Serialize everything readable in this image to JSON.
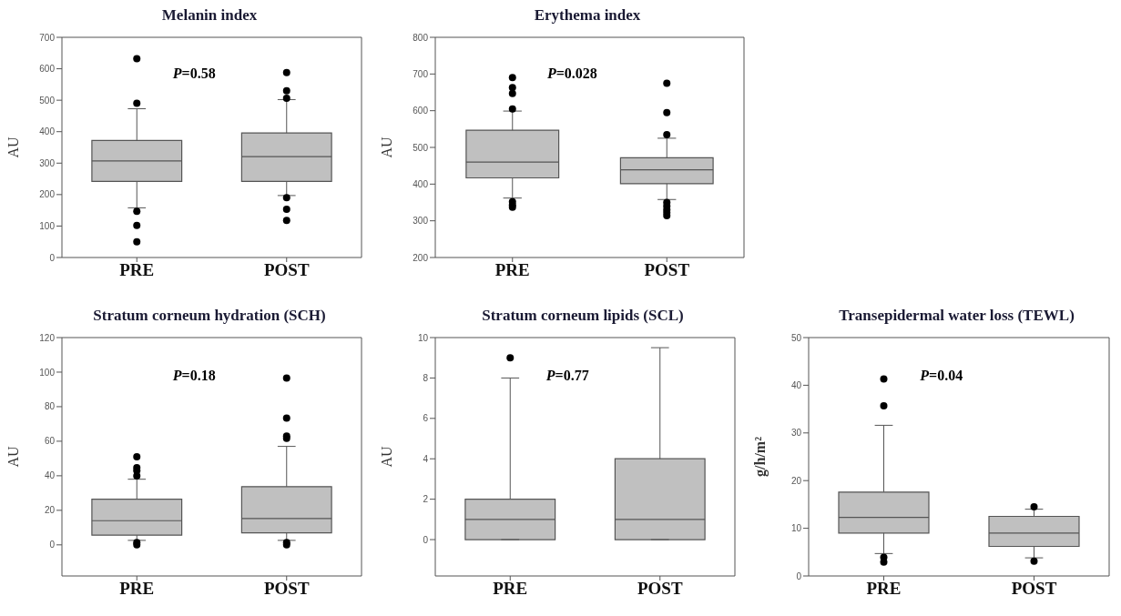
{
  "chart_data": [
    {
      "type": "box",
      "title": "Melanin index",
      "ylabel": "AU",
      "categories": [
        "PRE",
        "POST"
      ],
      "ylim": [
        0,
        700
      ],
      "yticks": [
        0,
        100,
        200,
        300,
        400,
        500,
        600,
        700
      ],
      "annotations": [
        "P=0.58"
      ],
      "series": [
        {
          "color": "#c0c0c0",
          "boxes": [
            {
              "low": 158,
              "q1": 242,
              "median": 307,
              "q3": 372,
              "high": 473,
              "outliers": [
                632,
                490,
                147,
                102,
                50
              ]
            },
            {
              "low": 197,
              "q1": 242,
              "median": 321,
              "q3": 396,
              "high": 502,
              "outliers": [
                588,
                530,
                506,
                190,
                153,
                118
              ]
            }
          ]
        }
      ]
    },
    {
      "type": "box",
      "title": "Erythema index",
      "ylabel": "AU",
      "categories": [
        "PRE",
        "POST"
      ],
      "ylim": [
        200,
        800
      ],
      "yticks": [
        200,
        300,
        400,
        500,
        600,
        700,
        800
      ],
      "annotations": [
        "P=0.028"
      ],
      "series": [
        {
          "color": "#c0c0c0",
          "boxes": [
            {
              "low": 362,
              "q1": 417,
              "median": 460,
              "q3": 547,
              "high": 599,
              "outliers": [
                690,
                663,
                647,
                605,
                352,
                343,
                337
              ]
            },
            {
              "low": 358,
              "q1": 401,
              "median": 439,
              "q3": 472,
              "high": 525,
              "outliers": [
                675,
                595,
                535,
                350,
                340,
                330,
                322,
                314
              ]
            }
          ]
        }
      ]
    },
    {
      "type": "box",
      "title": "Stratum corneum hydration (SCH)",
      "ylabel": "AU",
      "categories": [
        "PRE",
        "POST"
      ],
      "ylim": [
        -18,
        120
      ],
      "yticks": [
        0,
        20,
        40,
        60,
        80,
        100,
        120
      ],
      "annotations": [
        "P=0.18"
      ],
      "series": [
        {
          "color": "#c0c0c0",
          "boxes": [
            {
              "low": 2.6,
              "q1": 5.6,
              "median": 14,
              "q3": 26.4,
              "high": 38,
              "outliers": [
                51,
                44.7,
                43,
                40,
                1.4,
                0
              ]
            },
            {
              "low": 2.6,
              "q1": 7,
              "median": 15.2,
              "q3": 33.7,
              "high": 57,
              "outliers": [
                96.6,
                73.4,
                63,
                61.7,
                1.4,
                0
              ]
            }
          ]
        }
      ]
    },
    {
      "type": "box",
      "title": "Stratum corneum lipids (SCL)",
      "ylabel": "AU",
      "categories": [
        "PRE",
        "POST"
      ],
      "ylim": [
        -1.8,
        10
      ],
      "yticks": [
        0,
        2,
        4,
        6,
        8,
        10
      ],
      "annotations": [
        "P=0.77"
      ],
      "series": [
        {
          "color": "#c0c0c0",
          "boxes": [
            {
              "low": 0,
              "q1": 0,
              "median": 1,
              "q3": 2,
              "high": 8,
              "outliers": [
                9
              ]
            },
            {
              "low": 0,
              "q1": 0,
              "median": 1,
              "q3": 4,
              "high": 9.5
            }
          ]
        }
      ]
    },
    {
      "type": "box",
      "title": "Transepidermal water loss (TEWL)",
      "ylabel": "g/h/m²",
      "categories": [
        "PRE",
        "POST"
      ],
      "ylim": [
        0,
        50
      ],
      "yticks": [
        0,
        10,
        20,
        30,
        40,
        50
      ],
      "annotations": [
        "P=0.04"
      ],
      "series": [
        {
          "color": "#c0c0c0",
          "boxes": [
            {
              "low": 4.7,
              "q1": 9,
              "median": 12.3,
              "q3": 17.6,
              "high": 31.6,
              "outliers": [
                41.3,
                35.7,
                3.9,
                2.9
              ]
            },
            {
              "low": 3.8,
              "q1": 6.2,
              "median": 9,
              "q3": 12.5,
              "high": 14,
              "outliers": [
                14.5,
                3.1
              ]
            }
          ]
        }
      ]
    }
  ]
}
